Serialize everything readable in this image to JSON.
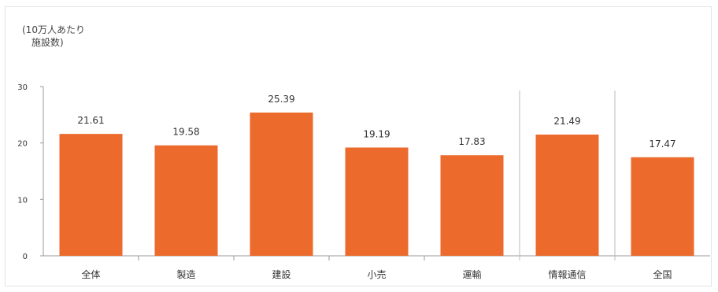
{
  "unit_line1": "(10万人あたり",
  "unit_line2": "施設数)",
  "chart_data": {
    "type": "bar",
    "title": "",
    "ylabel": "",
    "xlabel": "",
    "ylim": [
      0,
      30
    ],
    "yticks": [
      0,
      10,
      20,
      30
    ],
    "grid": false,
    "categories": [
      "全体",
      "製造",
      "建設",
      "小売",
      "運輸",
      "情報通信",
      "全国"
    ],
    "values": [
      21.61,
      19.58,
      25.39,
      19.19,
      17.83,
      21.49,
      17.47
    ],
    "value_labels": [
      "21.61",
      "19.58",
      "25.39",
      "19.19",
      "17.83",
      "21.49",
      "17.47"
    ],
    "bar_color": "#ec6a2c"
  }
}
